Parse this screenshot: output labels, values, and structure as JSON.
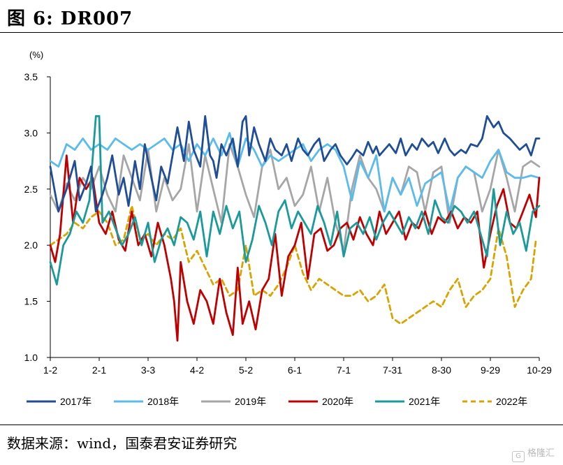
{
  "figure": {
    "title": "图  6:  DR007",
    "source": "数据来源：wind，国泰君安证券研究",
    "watermark": "格隆汇"
  },
  "chart_data": {
    "type": "line",
    "title": "DR007",
    "ylabel": "(%)",
    "xlabel": "",
    "ylim": [
      1.0,
      3.5
    ],
    "yticks": [
      1.0,
      1.5,
      2.0,
      2.5,
      3.0,
      3.5
    ],
    "ytick_labels": [
      "1.0",
      "1.5",
      "2.0",
      "2.5",
      "3.0",
      "3.5"
    ],
    "xlim": [
      0,
      300
    ],
    "xticks": [
      0,
      30,
      60,
      90,
      120,
      150,
      180,
      210,
      240,
      270,
      300
    ],
    "xtick_labels": [
      "1-2",
      "2-1",
      "3-3",
      "4-2",
      "5-2",
      "6-1",
      "7-1",
      "7-31",
      "8-30",
      "9-29",
      "10-29"
    ],
    "grid": false,
    "legend_position": "bottom",
    "series": [
      {
        "name": "2017年",
        "color": "#1f4e96",
        "dash": false,
        "x": [
          0,
          5,
          10,
          15,
          18,
          22,
          25,
          28,
          32,
          35,
          38,
          42,
          45,
          48,
          52,
          55,
          58,
          62,
          65,
          68,
          72,
          75,
          78,
          82,
          85,
          88,
          92,
          95,
          98,
          100,
          102,
          105,
          108,
          112,
          115,
          118,
          120,
          122,
          125,
          128,
          132,
          135,
          138,
          142,
          145,
          148,
          152,
          155,
          158,
          162,
          165,
          168,
          172,
          175,
          178,
          182,
          185,
          188,
          192,
          195,
          198,
          200,
          202,
          205,
          208,
          212,
          215,
          218,
          222,
          225,
          228,
          232,
          235,
          238,
          242,
          245,
          248,
          252,
          255,
          258,
          262,
          265,
          268,
          272,
          275,
          278,
          282,
          285,
          288,
          292,
          295,
          298,
          300
        ],
        "y": [
          2.7,
          2.3,
          2.5,
          2.75,
          2.4,
          2.55,
          2.7,
          2.3,
          2.45,
          2.6,
          2.8,
          2.45,
          2.6,
          2.35,
          2.75,
          2.5,
          2.9,
          2.6,
          2.4,
          2.7,
          2.55,
          2.8,
          3.05,
          2.75,
          3.1,
          2.85,
          2.7,
          3.15,
          2.8,
          2.75,
          2.6,
          2.9,
          2.8,
          2.95,
          2.7,
          3.1,
          3.15,
          2.8,
          3.05,
          2.9,
          2.75,
          2.95,
          2.85,
          2.8,
          2.9,
          2.75,
          2.95,
          2.85,
          2.8,
          2.9,
          2.95,
          2.75,
          2.85,
          2.9,
          2.8,
          2.72,
          2.78,
          2.85,
          2.8,
          2.92,
          2.82,
          2.88,
          2.8,
          2.85,
          2.9,
          2.82,
          2.95,
          2.8,
          2.9,
          2.85,
          2.95,
          2.88,
          2.92,
          2.82,
          2.95,
          2.85,
          2.8,
          2.85,
          2.82,
          2.9,
          2.88,
          2.95,
          3.15,
          3.05,
          3.1,
          3.0,
          2.95,
          2.9,
          2.85,
          2.9,
          2.8,
          2.95,
          2.95
        ]
      },
      {
        "name": "2018年",
        "color": "#5bbbea",
        "dash": false,
        "x": [
          0,
          5,
          10,
          15,
          20,
          25,
          30,
          35,
          40,
          45,
          50,
          55,
          60,
          65,
          70,
          75,
          80,
          85,
          90,
          95,
          100,
          105,
          110,
          115,
          120,
          125,
          130,
          135,
          140,
          145,
          150,
          155,
          160,
          165,
          170,
          175,
          180,
          185,
          190,
          195,
          200,
          205,
          210,
          215,
          220,
          225,
          230,
          235,
          240,
          245,
          250,
          255,
          260,
          265,
          270,
          275,
          280,
          285,
          290,
          295,
          300
        ],
        "y": [
          2.75,
          2.7,
          2.9,
          2.85,
          2.95,
          2.85,
          2.9,
          2.85,
          2.95,
          2.9,
          2.85,
          2.9,
          2.85,
          2.9,
          2.95,
          2.85,
          2.9,
          2.75,
          2.9,
          2.8,
          2.95,
          2.8,
          3.0,
          2.7,
          2.95,
          2.85,
          2.7,
          2.8,
          2.75,
          2.8,
          2.85,
          2.9,
          2.75,
          2.85,
          2.9,
          2.85,
          2.7,
          2.4,
          2.75,
          2.6,
          2.8,
          2.3,
          2.6,
          2.45,
          2.6,
          2.35,
          2.55,
          2.6,
          2.65,
          2.3,
          2.6,
          2.7,
          2.65,
          2.6,
          2.75,
          2.85,
          2.65,
          2.6,
          2.6,
          2.62,
          2.6
        ]
      },
      {
        "name": "2019年",
        "color": "#a6a6a6",
        "dash": false,
        "x": [
          0,
          5,
          10,
          15,
          20,
          25,
          30,
          35,
          40,
          45,
          50,
          55,
          60,
          65,
          70,
          75,
          80,
          85,
          90,
          95,
          100,
          105,
          110,
          115,
          120,
          125,
          130,
          135,
          140,
          145,
          150,
          155,
          160,
          165,
          170,
          175,
          180,
          185,
          190,
          195,
          200,
          205,
          210,
          215,
          220,
          225,
          230,
          235,
          240,
          245,
          250,
          255,
          260,
          265,
          270,
          275,
          280,
          285,
          290,
          295,
          300
        ],
        "y": [
          2.45,
          2.3,
          2.55,
          2.4,
          2.6,
          2.5,
          2.7,
          2.45,
          2.3,
          2.8,
          2.6,
          2.4,
          2.85,
          2.3,
          2.6,
          2.4,
          2.5,
          2.9,
          2.3,
          2.8,
          2.5,
          2.2,
          2.9,
          2.7,
          2.45,
          2.25,
          2.7,
          2.85,
          2.5,
          2.6,
          2.35,
          2.45,
          2.7,
          2.3,
          2.6,
          2.2,
          1.95,
          2.5,
          2.8,
          2.6,
          2.5,
          2.3,
          2.6,
          2.45,
          2.7,
          2.65,
          2.3,
          2.65,
          2.7,
          2.2,
          2.6,
          2.7,
          2.65,
          2.3,
          2.5,
          2.85,
          2.6,
          2.3,
          2.7,
          2.75,
          2.7
        ]
      },
      {
        "name": "2020年",
        "color": "#c00000",
        "dash": false,
        "x": [
          0,
          3,
          6,
          10,
          14,
          18,
          22,
          26,
          30,
          34,
          38,
          42,
          46,
          50,
          54,
          58,
          62,
          66,
          70,
          74,
          76,
          78,
          80,
          84,
          88,
          92,
          96,
          100,
          104,
          108,
          112,
          115,
          118,
          122,
          126,
          130,
          134,
          138,
          142,
          146,
          150,
          154,
          158,
          162,
          166,
          170,
          174,
          178,
          182,
          186,
          190,
          194,
          198,
          202,
          206,
          210,
          214,
          218,
          222,
          226,
          230,
          234,
          238,
          242,
          246,
          250,
          254,
          258,
          262,
          266,
          270,
          274,
          278,
          282,
          286,
          290,
          294,
          298,
          300
        ],
        "y": [
          2.0,
          1.85,
          2.1,
          2.8,
          2.2,
          2.6,
          2.5,
          2.6,
          2.2,
          2.1,
          2.3,
          2.05,
          1.95,
          2.3,
          2.0,
          2.1,
          1.9,
          2.2,
          2.0,
          1.7,
          1.5,
          1.15,
          1.85,
          1.5,
          1.3,
          1.6,
          1.5,
          1.3,
          1.7,
          1.4,
          1.2,
          1.8,
          1.3,
          1.5,
          1.25,
          1.6,
          1.7,
          2.1,
          1.55,
          1.9,
          2.0,
          2.2,
          1.7,
          2.1,
          2.15,
          1.95,
          2.0,
          2.15,
          2.2,
          2.05,
          2.25,
          2.1,
          2.0,
          2.3,
          2.1,
          2.2,
          2.3,
          2.05,
          2.2,
          2.15,
          2.3,
          2.1,
          2.25,
          2.2,
          2.3,
          2.15,
          2.25,
          2.2,
          2.3,
          1.8,
          2.1,
          2.35,
          2.5,
          2.2,
          2.15,
          2.3,
          2.45,
          2.25,
          2.6
        ]
      },
      {
        "name": "2021年",
        "color": "#1a9a9a",
        "dash": false,
        "x": [
          0,
          4,
          8,
          12,
          16,
          20,
          24,
          28,
          30,
          32,
          36,
          40,
          44,
          48,
          52,
          56,
          60,
          64,
          68,
          72,
          76,
          80,
          84,
          88,
          92,
          96,
          100,
          104,
          108,
          112,
          116,
          120,
          124,
          128,
          132,
          136,
          140,
          144,
          148,
          152,
          156,
          160,
          164,
          168,
          172,
          176,
          180,
          184,
          188,
          192,
          196,
          200,
          204,
          208,
          212,
          216,
          220,
          224,
          228,
          232,
          236,
          240,
          244,
          248,
          252,
          256,
          260,
          264,
          268,
          272,
          276,
          280,
          284,
          288,
          292,
          296,
          300
        ],
        "y": [
          1.85,
          1.65,
          2.0,
          2.1,
          2.3,
          2.2,
          2.4,
          3.15,
          3.15,
          2.2,
          2.3,
          2.15,
          2.0,
          2.1,
          2.25,
          2.0,
          2.2,
          1.85,
          2.05,
          2.15,
          2.0,
          2.25,
          2.2,
          2.05,
          2.3,
          1.9,
          2.3,
          2.1,
          2.35,
          2.15,
          2.3,
          1.85,
          2.05,
          2.35,
          2.2,
          2.0,
          2.3,
          2.4,
          2.15,
          2.3,
          2.2,
          2.1,
          2.35,
          2.2,
          2.0,
          2.3,
          1.9,
          2.15,
          2.2,
          2.1,
          2.25,
          2.05,
          2.2,
          2.3,
          2.2,
          2.1,
          2.25,
          2.15,
          2.3,
          2.1,
          2.4,
          2.25,
          2.2,
          2.35,
          2.3,
          2.2,
          2.3,
          2.1,
          1.9,
          2.5,
          2.0,
          2.3,
          2.1,
          2.2,
          1.95,
          2.3,
          2.35
        ]
      },
      {
        "name": "2022年",
        "color": "#d9a400",
        "dash": true,
        "x": [
          0,
          5,
          10,
          15,
          20,
          25,
          30,
          35,
          40,
          45,
          50,
          55,
          60,
          65,
          70,
          75,
          80,
          85,
          90,
          95,
          100,
          105,
          110,
          115,
          120,
          125,
          130,
          135,
          140,
          145,
          150,
          155,
          160,
          165,
          170,
          175,
          180,
          185,
          190,
          195,
          200,
          205,
          210,
          215,
          220,
          225,
          230,
          235,
          240,
          245,
          250,
          255,
          260,
          265,
          270,
          275,
          280,
          285,
          290,
          295,
          298
        ],
        "y": [
          2.0,
          2.05,
          2.1,
          2.2,
          2.15,
          2.25,
          2.3,
          2.2,
          2.0,
          2.05,
          2.35,
          2.05,
          2.1,
          2.0,
          2.1,
          2.05,
          2.15,
          1.85,
          1.95,
          1.8,
          1.65,
          1.7,
          1.55,
          1.6,
          2.0,
          1.55,
          1.6,
          1.55,
          1.65,
          1.8,
          2.0,
          1.75,
          1.6,
          1.7,
          1.65,
          1.6,
          1.55,
          1.55,
          1.6,
          1.5,
          1.55,
          1.65,
          1.35,
          1.3,
          1.35,
          1.4,
          1.45,
          1.5,
          1.45,
          1.6,
          1.7,
          1.45,
          1.55,
          1.6,
          1.7,
          2.15,
          1.9,
          1.45,
          1.6,
          1.7,
          2.05
        ]
      }
    ]
  }
}
